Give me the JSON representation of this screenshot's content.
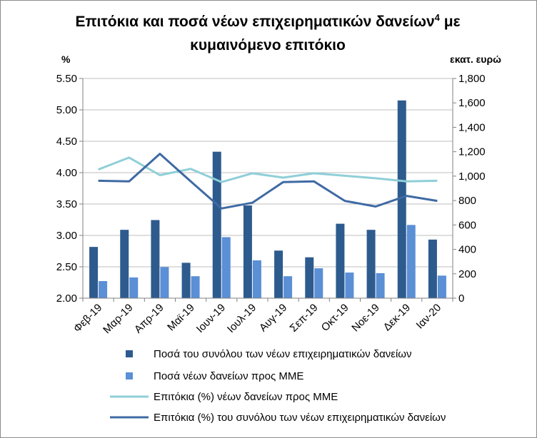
{
  "chart_data": {
    "type": "bar",
    "title_line1": "Επιτόκια και ποσά νέων επιχειρηματικών δανείων",
    "title_sup": "4",
    "title_suffix": " με",
    "title_line2": "κυμαινόμενο επιτόκιο",
    "ylabel_left": "%",
    "ylabel_right": "εκατ. ευρώ",
    "categories": [
      "Φεβ-19",
      "Μαρ-19",
      "Απρ-19",
      "Μαϊ-19",
      "Ιουν-19",
      "Ιουλ-19",
      "Αυγ-19",
      "Σεπ-19",
      "Οκτ-19",
      "Νοε-19",
      "Δεκ-19",
      "Ιαν-20"
    ],
    "ylim_left": [
      2.0,
      5.5
    ],
    "yticks_left": [
      "2.00",
      "2.50",
      "3.00",
      "3.50",
      "4.00",
      "4.50",
      "5.00",
      "5.50"
    ],
    "ylim_right": [
      0,
      1800
    ],
    "yticks_right": [
      "0",
      "200",
      "400",
      "600",
      "800",
      "1,000",
      "1,200",
      "1,400",
      "1,600",
      "1,800"
    ],
    "legend_position": "bottom",
    "series": [
      {
        "name": "Ποσά του συνόλου των νέων επιχειρηματικών δανείων",
        "type": "bar",
        "axis": "right",
        "color": "#2e5b8e",
        "values": [
          420,
          560,
          640,
          290,
          1200,
          760,
          390,
          335,
          610,
          560,
          1620,
          480
        ]
      },
      {
        "name": "Ποσά νέων δανείων προς ΜΜΕ",
        "type": "bar",
        "axis": "right",
        "color": "#5b8fd6",
        "values": [
          140,
          170,
          255,
          180,
          500,
          310,
          180,
          245,
          210,
          205,
          600,
          185
        ]
      },
      {
        "name": "Επιτόκια (%) νέων δανείων προς ΜΜΕ",
        "type": "line",
        "axis": "left",
        "color": "#8fcfd8",
        "values": [
          4.05,
          4.24,
          3.96,
          4.06,
          3.85,
          3.99,
          3.92,
          3.99,
          3.95,
          3.91,
          3.86,
          3.87
        ]
      },
      {
        "name": "Επιτόκια (%) του συνόλου των νέων επιχειρηματικών δανείων",
        "type": "line",
        "axis": "left",
        "color": "#3f6aa3",
        "values": [
          3.87,
          3.86,
          4.3,
          3.86,
          3.43,
          3.52,
          3.85,
          3.86,
          3.55,
          3.46,
          3.63,
          3.55
        ]
      }
    ]
  }
}
